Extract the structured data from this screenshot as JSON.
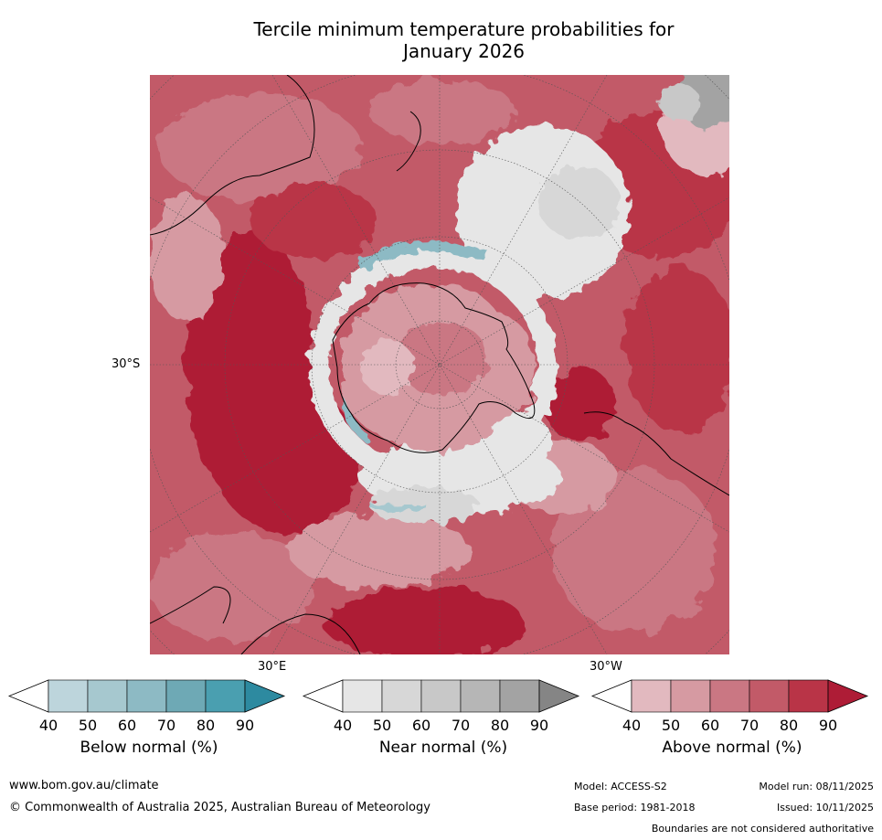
{
  "title": {
    "line1": "Tercile minimum temperature probabilities for",
    "line2": "January 2026"
  },
  "map": {
    "projection": "south-polar-stereographic",
    "lat_label": "30°S",
    "lon_label_east": "30°E",
    "lon_label_west": "30°W"
  },
  "legends": [
    {
      "label": "Below normal (%)",
      "ticks": [
        "40",
        "50",
        "60",
        "70",
        "80",
        "90"
      ],
      "colors": [
        "#bdd5dc",
        "#a6c8cf",
        "#8dbac4",
        "#6ea9b5",
        "#4a9fb0",
        "#2d8aa0"
      ]
    },
    {
      "label": "Near normal (%)",
      "ticks": [
        "40",
        "50",
        "60",
        "70",
        "80",
        "90"
      ],
      "colors": [
        "#e6e6e6",
        "#d7d7d7",
        "#c8c8c8",
        "#b6b6b6",
        "#a3a3a3",
        "#858585"
      ]
    },
    {
      "label": "Above normal (%)",
      "ticks": [
        "40",
        "50",
        "60",
        "70",
        "80",
        "90"
      ],
      "colors": [
        "#e2b9bf",
        "#d69aa2",
        "#ca7783",
        "#c25a68",
        "#b93447",
        "#ae1c36"
      ]
    }
  ],
  "footer": {
    "website": "www.bom.gov.au/climate",
    "copyright": "© Commonwealth of Australia 2025, Australian Bureau of Meteorology",
    "model": "Model: ACCESS-S2",
    "model_run": "Model run: 08/11/2025",
    "base_period": "Base period: 1981-2018",
    "issued": "Issued: 10/11/2025",
    "disclaimer": "Boundaries are not considered authoritative"
  }
}
